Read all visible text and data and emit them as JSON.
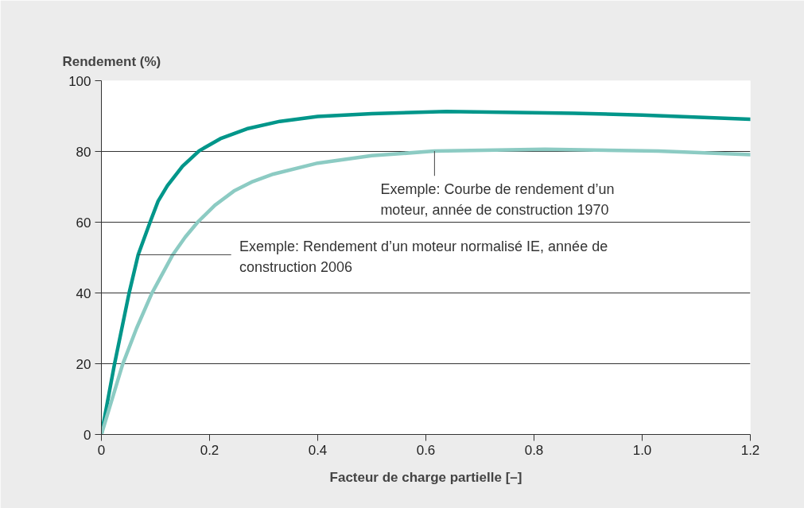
{
  "chart_data": {
    "type": "line",
    "xlabel": "Facteur de charge partielle [–]",
    "ylabel": "Rendement (%)",
    "xlim": [
      0,
      1.2
    ],
    "ylim": [
      0,
      100
    ],
    "xticks": [
      0,
      0.2,
      0.4,
      0.6,
      0.8,
      {
        "value": 1.0,
        "label": "1.0"
      },
      1.2
    ],
    "yticks": [
      0,
      20,
      40,
      60,
      80,
      100
    ],
    "grid": "y",
    "marker": "none",
    "line_style": "solid",
    "series": [
      {
        "color": "#00968a",
        "x": [
          0,
          0.024,
          0.051,
          0.068,
          0.09,
          0.105,
          0.122,
          0.15,
          0.181,
          0.22,
          0.269,
          0.33,
          0.4,
          0.5,
          0.638,
          0.874,
          1.0,
          1.2
        ],
        "values": [
          0,
          19.7,
          39.8,
          50.8,
          60,
          66,
          70.3,
          75.8,
          80.2,
          83.6,
          86.4,
          88.5,
          89.9,
          90.7,
          91.3,
          90.8,
          90.3,
          89.1
        ]
      },
      {
        "color": "#8ccbc3",
        "x": [
          0,
          0.039,
          0.065,
          0.093,
          0.132,
          0.155,
          0.178,
          0.21,
          0.245,
          0.28,
          0.318,
          0.4,
          0.5,
          0.616,
          0.82,
          1.03,
          1.2
        ],
        "values": [
          0,
          19.7,
          30,
          39.8,
          50.8,
          55.8,
          60,
          64.8,
          68.8,
          71.5,
          73.6,
          76.7,
          78.8,
          80.1,
          80.6,
          80.1,
          79.1
        ]
      }
    ],
    "annotations": [
      {
        "text": "Exemple: Courbe de rendement d’un moteur, année de construction 1970",
        "x": 0.616,
        "y": 80.1
      },
      {
        "text": "Exemple: Rendement d’un moteur normalisé IE, année de construction 2006",
        "x": 0.068,
        "y": 50.8
      }
    ]
  }
}
